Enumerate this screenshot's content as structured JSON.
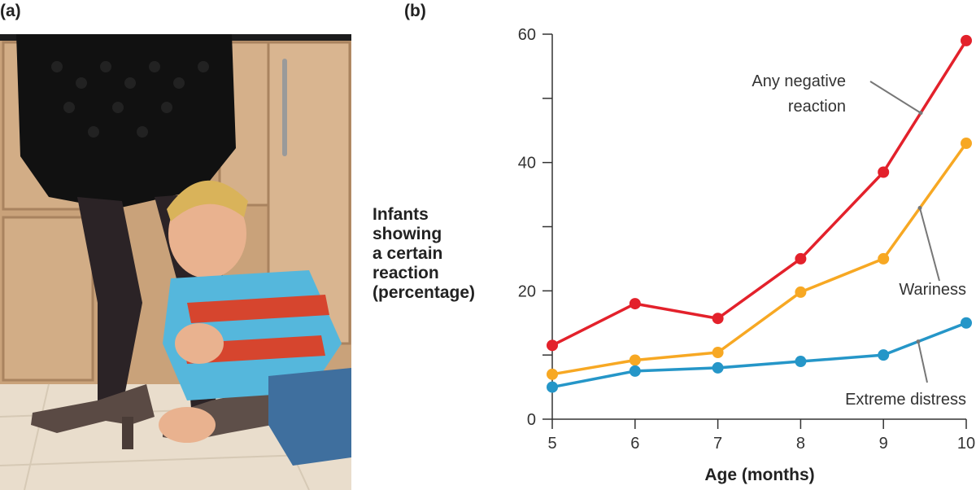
{
  "panels": {
    "a": "(a)",
    "b": "(b)"
  },
  "photo": {
    "description_icon": "child-clinging-to-parent-leg-photo"
  },
  "chart_data": {
    "type": "line",
    "x": [
      5,
      6,
      7,
      8,
      9,
      10
    ],
    "xlim": [
      5,
      10
    ],
    "ylim": [
      0,
      60
    ],
    "yticks": [
      0,
      20,
      40,
      60
    ],
    "xticks": [
      5,
      6,
      7,
      8,
      9,
      10
    ],
    "xlabel": "Age (months)",
    "ylabel": "Infants showing a certain reaction (percentage)",
    "ylabel_lines": [
      "Infants",
      "showing",
      "a certain",
      "reaction",
      "(percentage)"
    ],
    "grid": false,
    "series": [
      {
        "name": "Any negative\nreaction",
        "color": "#e3212b",
        "values": [
          11.5,
          18,
          15.7,
          25,
          38.5,
          59
        ]
      },
      {
        "name": "Wariness",
        "color": "#f7a823",
        "values": [
          7,
          9.2,
          10.4,
          19.8,
          25,
          43
        ]
      },
      {
        "name": "Extreme distress",
        "color": "#2596c8",
        "values": [
          5,
          7.5,
          8,
          9,
          10,
          15
        ]
      }
    ],
    "annotations": [
      {
        "series": 0,
        "text_lines": [
          "Any negative",
          "reaction"
        ],
        "at_x": 9.45
      },
      {
        "series": 1,
        "text_lines": [
          "Wariness"
        ],
        "at_x": 9.44
      },
      {
        "series": 2,
        "text_lines": [
          "Extreme distress"
        ],
        "at_x": 9.42
      }
    ]
  }
}
